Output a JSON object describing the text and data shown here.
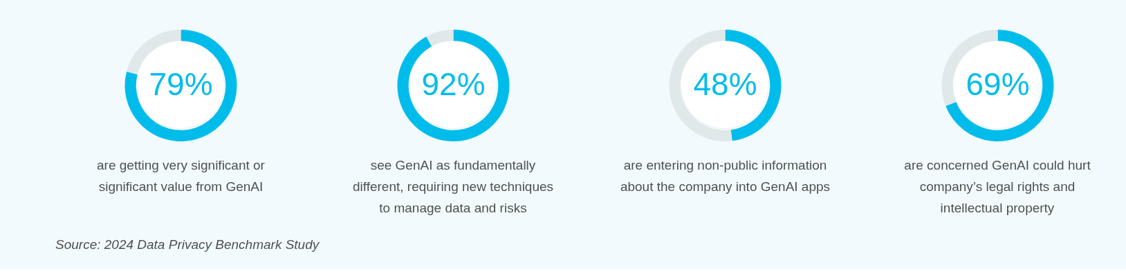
{
  "chart_data": [
    {
      "type": "donut",
      "title": "are getting very significant or significant value from GenAI",
      "categories": [
        null,
        null
      ],
      "values": [
        79,
        21
      ],
      "colors": [
        "#00bceb",
        "#e1e8ea"
      ],
      "value_labels": [
        "79%",
        null
      ],
      "annotations": [
        "Source: 2024 Data Privacy Benchmark Study"
      ]
    },
    {
      "type": "donut",
      "title": "see GenAI as fundamentally different, requiring new techniques to manage data and risks",
      "categories": [
        null,
        null
      ],
      "values": [
        92,
        8
      ],
      "colors": [
        "#00bceb",
        "#e1e8ea"
      ],
      "value_labels": [
        "92%",
        null
      ]
    },
    {
      "type": "donut",
      "title": "are entering non-public information about the company into GenAI apps",
      "categories": [
        null,
        null
      ],
      "values": [
        48,
        52
      ],
      "colors": [
        "#00bceb",
        "#e1e8ea"
      ],
      "value_labels": [
        "48%",
        null
      ]
    },
    {
      "type": "donut",
      "title": "are concerned GenAI could hurt company’s legal rights and intellectual property",
      "categories": [
        null,
        null
      ],
      "values": [
        69,
        31
      ],
      "colors": [
        "#00bceb",
        "#e1e8ea"
      ],
      "value_labels": [
        "69%",
        null
      ]
    }
  ]
}
